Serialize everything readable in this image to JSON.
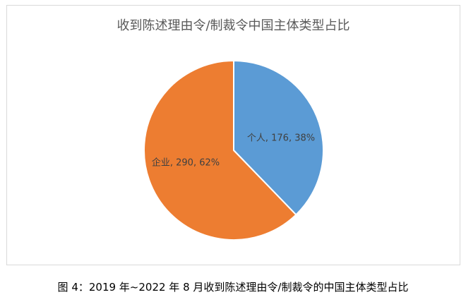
{
  "chart_data": {
    "type": "pie",
    "title": "收到陈述理由令/制裁令中国主体类型占比",
    "slices": [
      {
        "category": "个人",
        "value": 176,
        "percent": "38%",
        "label": "个人, 176, 38%",
        "color": "#5B9BD5"
      },
      {
        "category": "企业",
        "value": 290,
        "percent": "62%",
        "label": "企业, 290, 62%",
        "color": "#ED7D31"
      }
    ]
  },
  "caption": "图 4：2019 年~2022 年 8 月收到陈述理由令/制裁令的中国主体类型占比"
}
